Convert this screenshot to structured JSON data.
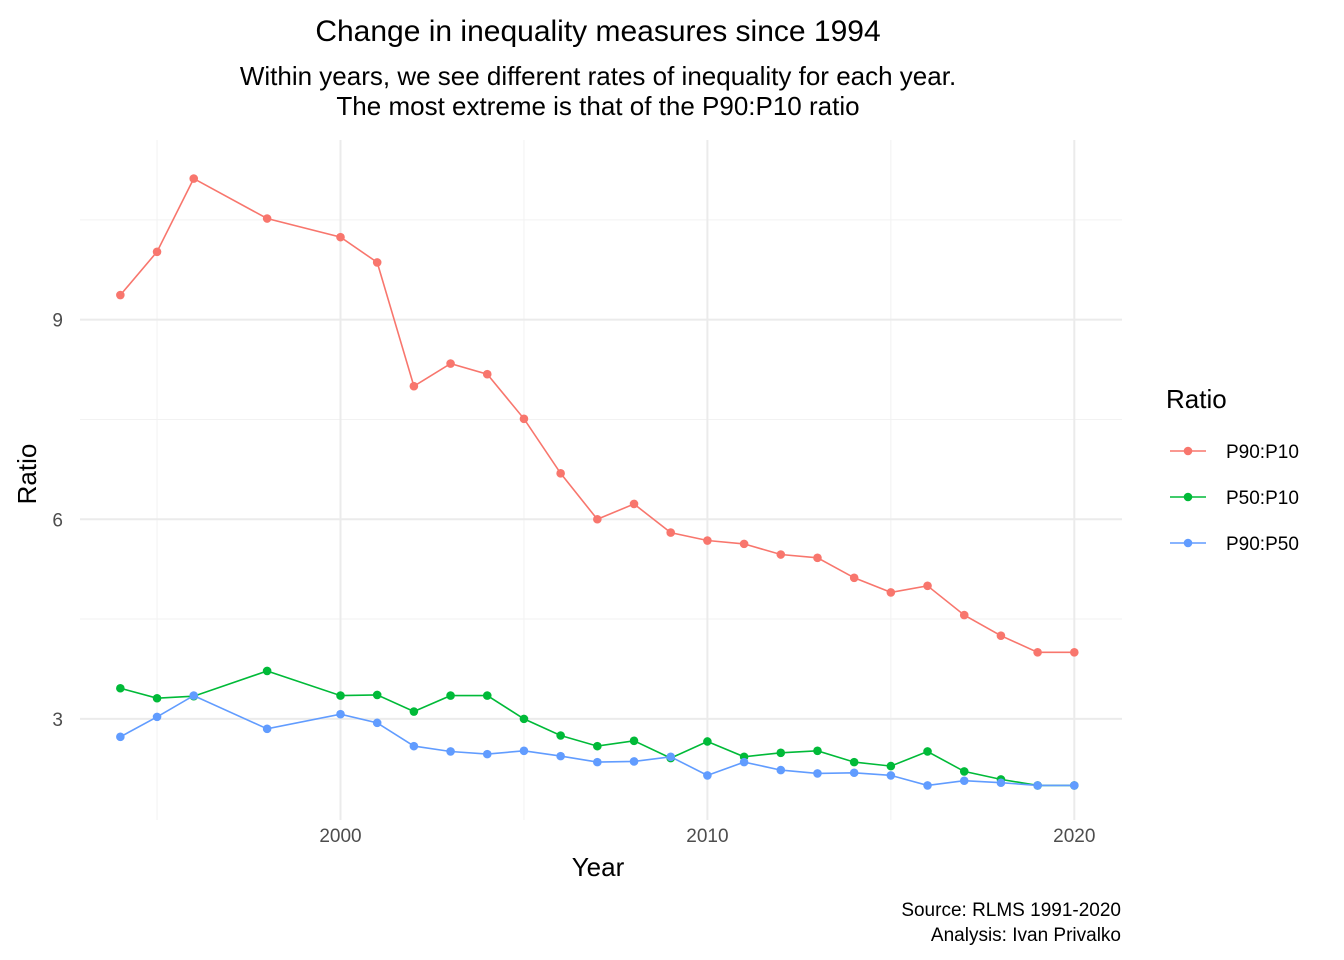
{
  "chart_data": {
    "type": "line",
    "title": "Change in inequality measures since 1994",
    "subtitle_lines": [
      "Within years, we see different rates of inequality for each year.",
      "The most extreme is that of the P90:P10 ratio"
    ],
    "xlabel": "Year",
    "ylabel": "Ratio",
    "xlim": [
      1992.9,
      2021.3
    ],
    "ylim": [
      1.48,
      11.7
    ],
    "x_ticks": [
      2000,
      2010,
      2020
    ],
    "x_tick_labels": [
      "2000",
      "2010",
      "2020"
    ],
    "x_minor_ticks": [
      1995,
      2005,
      2015
    ],
    "y_ticks": [
      3,
      6,
      9
    ],
    "y_tick_labels": [
      "3",
      "6",
      "9"
    ],
    "y_minor_ticks": [
      4.5,
      7.5,
      10.5
    ],
    "grid": true,
    "legend": {
      "title": "Ratio",
      "position": "right"
    },
    "x": [
      1994,
      1995,
      1996,
      1998,
      2000,
      2001,
      2002,
      2003,
      2004,
      2005,
      2006,
      2007,
      2008,
      2009,
      2010,
      2011,
      2012,
      2013,
      2014,
      2015,
      2016,
      2017,
      2018,
      2019,
      2020
    ],
    "series": [
      {
        "name": "P90:P10",
        "color": "#F8766D",
        "values": [
          9.37,
          10.02,
          11.12,
          10.52,
          10.24,
          9.86,
          8.0,
          8.34,
          8.18,
          7.51,
          6.69,
          6.0,
          6.23,
          5.8,
          5.68,
          5.63,
          5.47,
          5.42,
          5.12,
          4.9,
          5.0,
          4.56,
          4.25,
          4.0,
          4.0
        ]
      },
      {
        "name": "P50:P10",
        "color": "#00BA38",
        "values": [
          3.46,
          3.31,
          3.34,
          3.72,
          3.35,
          3.36,
          3.11,
          3.35,
          3.35,
          3.0,
          2.75,
          2.59,
          2.67,
          2.41,
          2.66,
          2.43,
          2.49,
          2.52,
          2.35,
          2.29,
          2.51,
          2.21,
          2.09,
          2.0,
          2.0
        ]
      },
      {
        "name": "P90:P50",
        "color": "#619CFF",
        "values": [
          2.73,
          3.03,
          3.35,
          2.85,
          3.07,
          2.94,
          2.59,
          2.51,
          2.47,
          2.52,
          2.44,
          2.35,
          2.36,
          2.43,
          2.15,
          2.35,
          2.23,
          2.18,
          2.19,
          2.15,
          2.0,
          2.07,
          2.04,
          2.0,
          2.0
        ]
      }
    ],
    "caption_lines": [
      "Source: RLMS 1991-2020",
      "Analysis: Ivan Privalko"
    ]
  }
}
